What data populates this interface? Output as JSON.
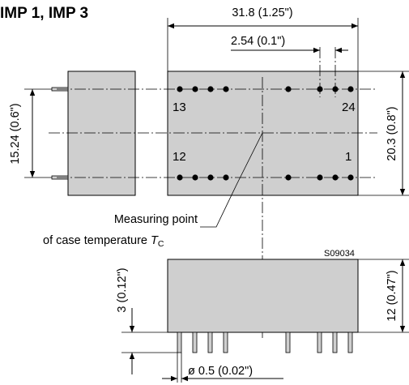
{
  "title": "IMP 1, IMP 3",
  "dimensions": {
    "width_total": "31.8 (1.25\")",
    "pitch": "2.54 (0.1\")",
    "row_spacing": "15.24 (0.6\")",
    "depth": "20.3 (0.8\")",
    "height": "12 (0.47\")",
    "pin_length": "3 (0.12\")",
    "pin_diameter": "ø 0.5 (0.02\")"
  },
  "pin_labels": {
    "top_left": "13",
    "top_right": "24",
    "bottom_left": "12",
    "bottom_right": "1"
  },
  "measuring_point": {
    "line1": "Measuring point",
    "line2_prefix": "of case temperature ",
    "symbol": "T",
    "subscript": "C"
  },
  "drawing_code": "S09034"
}
